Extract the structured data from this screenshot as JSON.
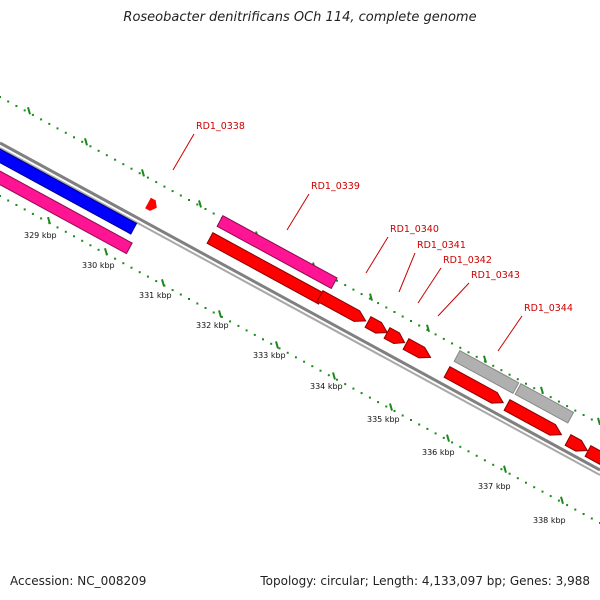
{
  "title": "Roseobacter denitrificans OCh 114, complete genome",
  "accession_text": "Accession: NC_008209",
  "summary_text": "Topology: circular; Length: 4,133,097 bp; Genes: 3,988",
  "colors": {
    "backbone": "#808080",
    "tick": "#1a8a1a",
    "gene_red": "#ff0000",
    "gene_pink": "#ff1493",
    "gene_blue": "#0000ff",
    "gene_grey": "#b0b0b0",
    "label_red": "#cc0000"
  },
  "ruler": {
    "labels": [
      "329 kbp",
      "330 kbp",
      "331 kbp",
      "332 kbp",
      "333 kbp",
      "334 kbp",
      "335 kbp",
      "336 kbp",
      "337 kbp",
      "338 kbp"
    ]
  },
  "genes": [
    {
      "name": "RD1_0338",
      "labeled": true
    },
    {
      "name": "RD1_0339",
      "labeled": true
    },
    {
      "name": "RD1_0340",
      "labeled": true
    },
    {
      "name": "RD1_0341",
      "labeled": true
    },
    {
      "name": "RD1_0342",
      "labeled": true
    },
    {
      "name": "RD1_0343",
      "labeled": true
    },
    {
      "name": "RD1_0344",
      "labeled": true
    }
  ]
}
